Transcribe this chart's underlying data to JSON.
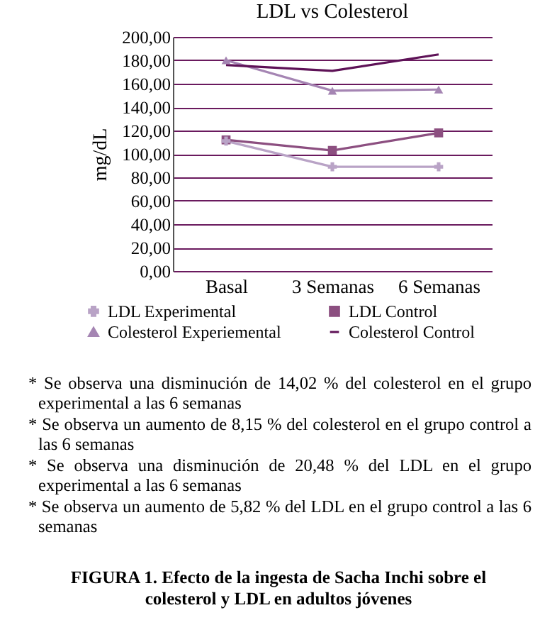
{
  "chart_data": {
    "type": "line",
    "title": "LDL vs Colesterol",
    "ylabel": "mg/dL",
    "categories": [
      "Basal",
      "3 Semanas",
      "6 Semanas"
    ],
    "series": [
      {
        "name": "LDL Experimental",
        "color": "#b9a3c6",
        "marker": "cross",
        "values": [
          111,
          89,
          89
        ]
      },
      {
        "name": "LDL Control",
        "color": "#8c4f80",
        "marker": "square",
        "values": [
          112,
          103,
          118
        ]
      },
      {
        "name": "Colesterol Experiemental",
        "color": "#a585b3",
        "marker": "triangle",
        "values": [
          180,
          154,
          155
        ]
      },
      {
        "name": "Colesterol Control",
        "color": "#5e1257",
        "marker": "none",
        "values": [
          176,
          171,
          185
        ]
      }
    ],
    "ylim": [
      0,
      200
    ],
    "yticks": [
      {
        "value": 0,
        "label": "0,00"
      },
      {
        "value": 20,
        "label": "20,00"
      },
      {
        "value": 40,
        "label": "40,00"
      },
      {
        "value": 60,
        "label": "60,00"
      },
      {
        "value": 80,
        "label": "80,00"
      },
      {
        "value": 100,
        "label": "100,00"
      },
      {
        "value": 120,
        "label": "120,00"
      },
      {
        "value": 140,
        "label": "140,00"
      },
      {
        "value": 160,
        "label": "160,00"
      },
      {
        "value": 180,
        "label": "180,00"
      },
      {
        "value": 200,
        "label": "200,00"
      }
    ],
    "grid": "y",
    "legend": "bottom",
    "annotations": [
      "* Se observa una disminución de 14,02 % del colesterol en el grupo experimental a las 6 semanas",
      "* Se observa un aumento de 8,15 % del colesterol en el grupo control a las 6 semanas",
      "* Se observa una disminución de 20,48 % del LDL en el grupo experimental a las 6 semanas",
      "* Se observa un aumento de 5,82 % del LDL en el grupo control a las 6 semanas",
      "FIGURA 1. Efecto de la ingesta de Sacha Inchi sobre el colesterol y LDL en adultos jóvenes"
    ]
  }
}
